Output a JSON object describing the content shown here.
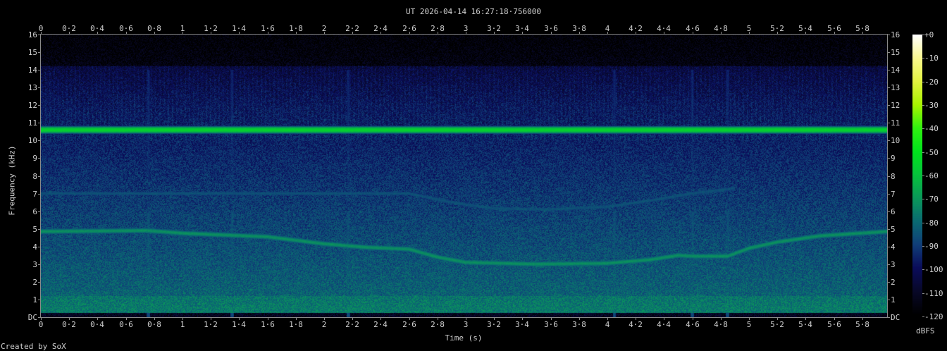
{
  "chart_data": {
    "type": "heatmap",
    "subtype": "spectrogram",
    "title": "UT 2026-04-14 16:27:18·756000",
    "xlabel": "Time (s)",
    "ylabel": "Frequency (kHz)",
    "colorbar_label": "dBFS",
    "footer": "Created by SoX",
    "xlim": [
      0,
      5.975
    ],
    "ylim": [
      0,
      16
    ],
    "zlim": [
      -120,
      0
    ],
    "x_ticks": [
      "0",
      "0·2",
      "0·4",
      "0·6",
      "0·8",
      "1",
      "1·2",
      "1·4",
      "1·6",
      "1·8",
      "2",
      "2·2",
      "2·4",
      "2·6",
      "2·8",
      "3",
      "3·2",
      "3·4",
      "3·6",
      "3·8",
      "4",
      "4·2",
      "4·4",
      "4·6",
      "4·8",
      "5",
      "5·2",
      "5·4",
      "5·6",
      "5·8"
    ],
    "y_ticks": [
      "DC",
      "1",
      "2",
      "3",
      "4",
      "5",
      "6",
      "7",
      "8",
      "9",
      "10",
      "11",
      "12",
      "13",
      "14",
      "15",
      "16"
    ],
    "colorbar_ticks": [
      "+0",
      "-10",
      "-20",
      "-30",
      "-40",
      "-50",
      "-60",
      "-70",
      "-80",
      "-90",
      "-100",
      "-110",
      "-120"
    ],
    "colormap": [
      {
        "db": -120,
        "color": "#000000"
      },
      {
        "db": -110,
        "color": "#080828"
      },
      {
        "db": -100,
        "color": "#0a0c5a"
      },
      {
        "db": -90,
        "color": "#103e78"
      },
      {
        "db": -80,
        "color": "#0a6a72"
      },
      {
        "db": -70,
        "color": "#0a985a"
      },
      {
        "db": -60,
        "color": "#06c23c"
      },
      {
        "db": -50,
        "color": "#00e41c"
      },
      {
        "db": -40,
        "color": "#30f010"
      },
      {
        "db": -30,
        "color": "#a8f400"
      },
      {
        "db": -20,
        "color": "#e4f440"
      },
      {
        "db": -10,
        "color": "#faf890"
      },
      {
        "db": 0,
        "color": "#ffffff"
      }
    ],
    "tonal_tracks": [
      {
        "level_db": -55,
        "t": [
          0,
          5.975
        ],
        "f_khz": [
          10.6,
          10.6
        ]
      },
      {
        "level_db": -72,
        "t": [
          0,
          0.75,
          1.0,
          1.6,
          2.0,
          2.3,
          2.6,
          2.8,
          3.0,
          3.5,
          4.0,
          4.3,
          4.5,
          4.6,
          4.85,
          5.0,
          5.2,
          5.5,
          5.975
        ],
        "f_khz": [
          4.85,
          4.9,
          4.75,
          4.55,
          4.15,
          3.95,
          3.85,
          3.4,
          3.1,
          3.0,
          3.05,
          3.25,
          3.5,
          3.45,
          3.45,
          3.9,
          4.25,
          4.6,
          4.85
        ]
      },
      {
        "level_db": -86,
        "t": [
          2.6,
          2.9,
          3.2,
          3.6,
          4.0,
          4.3,
          4.6,
          4.9
        ],
        "f_khz": [
          7.0,
          6.5,
          6.15,
          6.1,
          6.25,
          6.6,
          7.0,
          7.3
        ]
      },
      {
        "level_db": -80,
        "t": [
          0,
          5.975
        ],
        "f_khz": [
          0.5,
          0.5
        ]
      }
    ],
    "transients_s": [
      0.76,
      2.17,
      4.05,
      4.6,
      4.85,
      1.35
    ]
  }
}
